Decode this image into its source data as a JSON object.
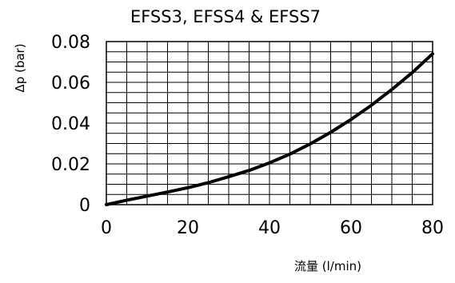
{
  "chart_data": {
    "type": "line",
    "title": "EFSS3, EFSS4 & EFSS7",
    "xlabel": "流量 (l/min)",
    "ylabel": "Δp (bar)",
    "xlim": [
      0,
      80
    ],
    "ylim": [
      0,
      0.08
    ],
    "x_ticks": [
      "0",
      "20",
      "40",
      "60",
      "80"
    ],
    "y_ticks": [
      "0",
      "0.02",
      "0.04",
      "0.06",
      "0.08"
    ],
    "x_grid_step": 5,
    "y_grid_step": 0.005,
    "grid": true,
    "series": [
      {
        "x": [
          0,
          5,
          10,
          15,
          20,
          25,
          30,
          35,
          40,
          45,
          50,
          55,
          60,
          65,
          70,
          75,
          80
        ],
        "y": [
          0.0,
          0.0022,
          0.0042,
          0.0062,
          0.0083,
          0.0108,
          0.0137,
          0.0168,
          0.0205,
          0.0248,
          0.0298,
          0.0355,
          0.0418,
          0.0488,
          0.0565,
          0.0648,
          0.074
        ]
      }
    ]
  }
}
